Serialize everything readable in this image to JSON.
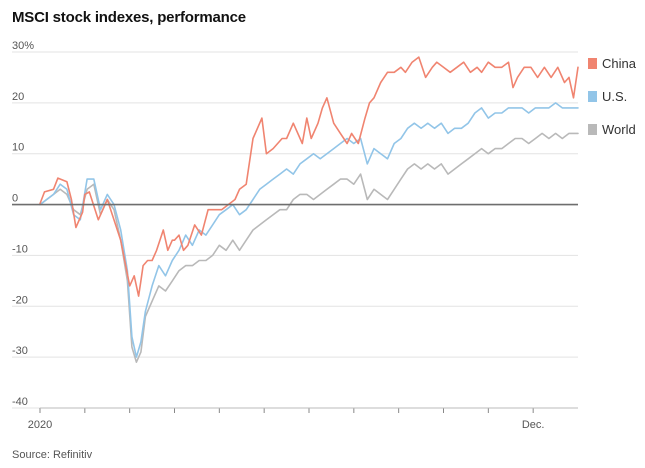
{
  "title": "MSCI stock indexes, performance",
  "source": "Source: Refinitiv",
  "chart_data": {
    "type": "line",
    "title": "MSCI stock indexes, performance",
    "ylabel": "",
    "xlabel": "",
    "ylim": [
      -40,
      30
    ],
    "yticks": [
      30,
      20,
      10,
      0,
      -10,
      -20,
      -30,
      -40
    ],
    "ytick_labels": [
      "30%",
      "20",
      "10",
      "0",
      "-10",
      "-20",
      "-30",
      "-40"
    ],
    "xlim": [
      0,
      12
    ],
    "xticks": [
      0,
      1,
      2,
      3,
      4,
      5,
      6,
      7,
      8,
      9,
      10,
      11
    ],
    "xtick_labels": [
      {
        "x": 0,
        "label": "2020"
      },
      {
        "x": 11,
        "label": "Dec."
      }
    ],
    "grid": true,
    "legend_position": "right",
    "series": [
      {
        "name": "China",
        "color": "#f08470",
        "x": [
          0,
          0.1,
          0.3,
          0.4,
          0.6,
          0.7,
          0.8,
          0.95,
          1.0,
          1.1,
          1.3,
          1.5,
          1.8,
          2.0,
          2.1,
          2.2,
          2.25,
          2.3,
          2.4,
          2.5,
          2.6,
          2.75,
          2.85,
          2.95,
          3.0,
          3.1,
          3.2,
          3.3,
          3.45,
          3.6,
          3.75,
          3.9,
          4.05,
          4.2,
          4.35,
          4.45,
          4.6,
          4.75,
          4.95,
          5.05,
          5.2,
          5.4,
          5.5,
          5.65,
          5.85,
          5.95,
          6.05,
          6.2,
          6.3,
          6.4,
          6.55,
          6.7,
          6.85,
          6.95,
          7.1,
          7.25,
          7.35,
          7.45,
          7.6,
          7.75,
          7.9,
          8.05,
          8.15,
          8.3,
          8.45,
          8.6,
          8.75,
          8.85,
          9.0,
          9.15,
          9.3,
          9.45,
          9.6,
          9.75,
          9.85,
          10.0,
          10.15,
          10.3,
          10.45,
          10.55,
          10.65,
          10.8,
          10.95,
          11.1,
          11.25,
          11.4,
          11.55,
          11.7,
          11.8,
          11.9,
          12.0
        ],
        "values": [
          0.2,
          2.5,
          3,
          5.2,
          4.5,
          1,
          -4.5,
          -1.5,
          2,
          2.5,
          -3,
          1,
          -7,
          -16,
          -14,
          -18,
          -15,
          -12,
          -11,
          -11,
          -9,
          -5,
          -9,
          -7,
          -7,
          -6,
          -9,
          -8,
          -4,
          -6,
          -1,
          -1,
          -1,
          0,
          1,
          3,
          4,
          13,
          17,
          10,
          11,
          13,
          13,
          16,
          12,
          17,
          13,
          16,
          19,
          21,
          16,
          14,
          12,
          14,
          12,
          17,
          20,
          21,
          24,
          26,
          26,
          27,
          26,
          28,
          29,
          25,
          27,
          28,
          27,
          26,
          27,
          28,
          26,
          27,
          26,
          28,
          27,
          27,
          28,
          23,
          25,
          27,
          27,
          25,
          27,
          25,
          27,
          24,
          25,
          21,
          27
        ]
      },
      {
        "name": "U.S.",
        "color": "#92c5e8",
        "x": [
          0,
          0.15,
          0.3,
          0.45,
          0.6,
          0.75,
          0.9,
          1.05,
          1.2,
          1.35,
          1.5,
          1.65,
          1.8,
          1.95,
          2.05,
          2.15,
          2.25,
          2.35,
          2.5,
          2.65,
          2.8,
          2.95,
          3.1,
          3.25,
          3.4,
          3.55,
          3.7,
          3.85,
          4.0,
          4.15,
          4.3,
          4.45,
          4.6,
          4.75,
          4.9,
          5.05,
          5.2,
          5.35,
          5.5,
          5.65,
          5.8,
          5.95,
          6.1,
          6.25,
          6.4,
          6.55,
          6.7,
          6.85,
          7.0,
          7.15,
          7.3,
          7.45,
          7.6,
          7.75,
          7.9,
          8.05,
          8.2,
          8.35,
          8.5,
          8.65,
          8.8,
          8.95,
          9.1,
          9.25,
          9.4,
          9.55,
          9.7,
          9.85,
          10.0,
          10.15,
          10.3,
          10.45,
          10.6,
          10.75,
          10.9,
          11.05,
          11.2,
          11.35,
          11.5,
          11.65,
          11.8,
          11.9,
          12.0
        ],
        "values": [
          0,
          1,
          2,
          4,
          3,
          -2,
          -3,
          5,
          5,
          -1,
          2,
          0,
          -5,
          -13,
          -26,
          -30,
          -27,
          -21,
          -16,
          -12,
          -14,
          -11,
          -9,
          -6,
          -8,
          -5,
          -6,
          -4,
          -2,
          -1,
          0,
          -2,
          -1,
          1,
          3,
          4,
          5,
          6,
          7,
          6,
          8,
          9,
          10,
          9,
          10,
          11,
          12,
          13,
          12,
          13,
          8,
          11,
          10,
          9,
          12,
          13,
          15,
          16,
          15,
          16,
          15,
          16,
          14,
          15,
          15,
          16,
          18,
          19,
          17,
          18,
          18,
          19,
          19,
          19,
          18,
          19,
          19,
          19,
          20,
          19,
          19,
          19,
          19
        ]
      },
      {
        "name": "World",
        "color": "#b9b9b9",
        "x": [
          0,
          0.15,
          0.3,
          0.45,
          0.6,
          0.75,
          0.9,
          1.05,
          1.2,
          1.35,
          1.5,
          1.65,
          1.8,
          1.95,
          2.05,
          2.15,
          2.25,
          2.35,
          2.5,
          2.65,
          2.8,
          2.95,
          3.1,
          3.25,
          3.4,
          3.55,
          3.7,
          3.85,
          4.0,
          4.15,
          4.3,
          4.45,
          4.6,
          4.75,
          4.9,
          5.05,
          5.2,
          5.35,
          5.5,
          5.65,
          5.8,
          5.95,
          6.1,
          6.25,
          6.4,
          6.55,
          6.7,
          6.85,
          7.0,
          7.15,
          7.3,
          7.45,
          7.6,
          7.75,
          7.9,
          8.05,
          8.2,
          8.35,
          8.5,
          8.65,
          8.8,
          8.95,
          9.1,
          9.25,
          9.4,
          9.55,
          9.7,
          9.85,
          10.0,
          10.15,
          10.3,
          10.45,
          10.6,
          10.75,
          10.9,
          11.05,
          11.2,
          11.35,
          11.5,
          11.65,
          11.8,
          11.9,
          12.0
        ],
        "values": [
          0,
          1,
          2,
          3,
          2,
          -1,
          -2,
          3,
          4,
          -2,
          1,
          -1,
          -7,
          -15,
          -28,
          -31,
          -29,
          -22,
          -19,
          -16,
          -17,
          -15,
          -13,
          -12,
          -12,
          -11,
          -11,
          -10,
          -8,
          -9,
          -7,
          -9,
          -7,
          -5,
          -4,
          -3,
          -2,
          -1,
          -1,
          1,
          2,
          2,
          1,
          2,
          3,
          4,
          5,
          5,
          4,
          6,
          1,
          3,
          2,
          1,
          3,
          5,
          7,
          8,
          7,
          8,
          7,
          8,
          6,
          7,
          8,
          9,
          10,
          11,
          10,
          11,
          11,
          12,
          13,
          13,
          12,
          13,
          14,
          13,
          14,
          13,
          14,
          14,
          14
        ]
      }
    ]
  }
}
